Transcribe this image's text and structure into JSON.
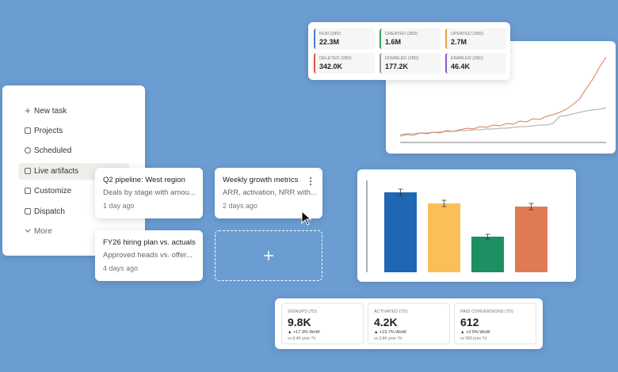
{
  "sidebar": {
    "items": [
      "New task",
      "Projects",
      "Scheduled",
      "Live artifacts",
      "Customize",
      "Dispatch",
      "More"
    ]
  },
  "artifacts": [
    {
      "title": "Q2 pipeline: West region",
      "subtitle": "Deals by stage with amou...",
      "time": "1 day ago"
    },
    {
      "title": "Weekly growth metrics",
      "subtitle": "ARR, activation, NRR with...",
      "time": "2 days ago"
    },
    {
      "title": "FY26 hiring plan vs. actuals",
      "subtitle": "Approved heads vs. offer...",
      "time": "4 days ago"
    }
  ],
  "stats_top": [
    {
      "label": "RUN (28D)",
      "value": "22.3M",
      "color": "#4a7fd0"
    },
    {
      "label": "CREATED (28D)",
      "value": "1.6M",
      "color": "#3f9a68"
    },
    {
      "label": "UPDATED (28D)",
      "value": "2.7M",
      "color": "#e8a33c"
    },
    {
      "label": "DELETED (28D)",
      "value": "342.0K",
      "color": "#d8583c"
    },
    {
      "label": "DISABLED (28D)",
      "value": "177.2K",
      "color": "#9a9a9a"
    },
    {
      "label": "ENABLED (28D)",
      "value": "46.4K",
      "color": "#8a5cc8"
    }
  ],
  "chart_data": [
    {
      "type": "line",
      "series": [
        {
          "color": "#aaaaaa",
          "values": [
            10,
            11,
            11,
            12,
            12,
            13,
            13,
            14,
            14,
            15,
            15,
            16,
            16,
            17,
            17,
            18,
            18,
            19,
            20,
            20,
            21,
            22,
            22,
            24,
            33,
            34,
            36,
            38,
            40,
            41,
            42,
            44
          ]
        },
        {
          "color": "#e07a52",
          "values": [
            8,
            10,
            9,
            12,
            11,
            13,
            12,
            15,
            14,
            16,
            18,
            17,
            20,
            19,
            22,
            21,
            24,
            23,
            27,
            26,
            30,
            29,
            33,
            35,
            38,
            42,
            48,
            55,
            68,
            80,
            95,
            108
          ]
        }
      ]
    },
    {
      "type": "bar",
      "values": [
        101,
        87,
        45,
        83
      ],
      "errors": [
        4,
        4,
        3,
        4
      ],
      "colors": [
        "#1f67b2",
        "#fbbf5a",
        "#1d8f62",
        "#e07a52"
      ]
    }
  ],
  "metrics": [
    {
      "label": "SIGNUPS (7D)",
      "value": "9.8K",
      "change": "▲ +17.3% WoW",
      "prior": "vs 8.4K prior 7d"
    },
    {
      "label": "ACTIVATED (7D)",
      "value": "4.2K",
      "change": "▲ +15.7% WoW",
      "prior": "vs 3.6K prior 7d"
    },
    {
      "label": "PAID CONVERSIONS (7D)",
      "value": "612",
      "change": "▲ +3.9% WoW",
      "prior": "vs 589 prior 7d"
    }
  ]
}
